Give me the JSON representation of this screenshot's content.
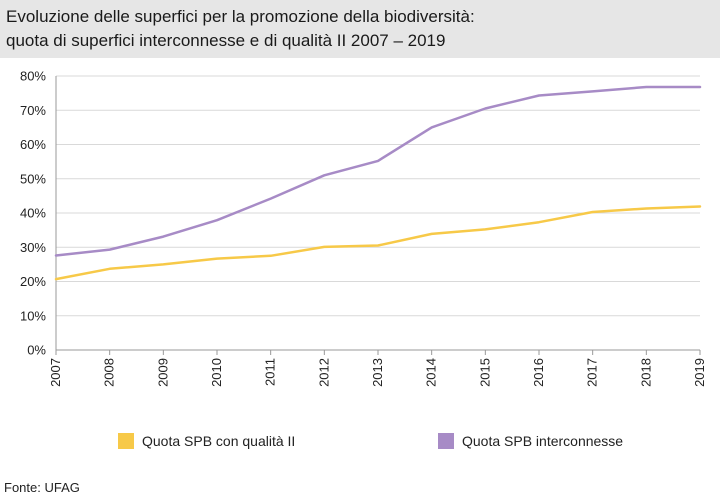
{
  "title_lines": [
    "Evoluzione delle superfici per la promozione della biodiversità:",
    "quota di superfici interconnesse e di qualità II 2007 – 2019"
  ],
  "source": "Fonte: UFAG",
  "chart_data": {
    "type": "line",
    "title": "Evoluzione delle superfici per la promozione della biodiversità: quota di superfici interconnesse e di qualità II 2007 – 2019",
    "xlabel": "",
    "ylabel": "",
    "x": [
      2007,
      2008,
      2009,
      2010,
      2011,
      2012,
      2013,
      2014,
      2015,
      2016,
      2017,
      2018,
      2019
    ],
    "x_tick_labels": [
      "2007",
      "2008",
      "2009",
      "2010",
      "2011",
      "2012",
      "2013",
      "2014",
      "2015",
      "2016",
      "2017",
      "2018",
      "2019"
    ],
    "ylim": [
      0,
      80
    ],
    "y_ticks": [
      0,
      10,
      20,
      30,
      40,
      50,
      60,
      70,
      80
    ],
    "y_tick_labels": [
      "0%",
      "10%",
      "20%",
      "30%",
      "40%",
      "50%",
      "60%",
      "70%",
      "80%"
    ],
    "grid": "horizontal",
    "legend_position": "bottom",
    "series": [
      {
        "name": "Quota SPB con qualità II",
        "color": "#f7c948",
        "values": [
          20.7,
          23.7,
          25.0,
          26.7,
          27.5,
          30.1,
          30.5,
          33.9,
          35.2,
          37.3,
          40.3,
          41.3,
          41.9
        ]
      },
      {
        "name": "Quota SPB interconnesse",
        "color": "#a78bc6",
        "values": [
          27.6,
          29.3,
          33.1,
          37.9,
          44.2,
          51.0,
          55.2,
          65.0,
          70.5,
          74.3,
          75.5,
          76.8,
          76.8
        ]
      }
    ]
  }
}
